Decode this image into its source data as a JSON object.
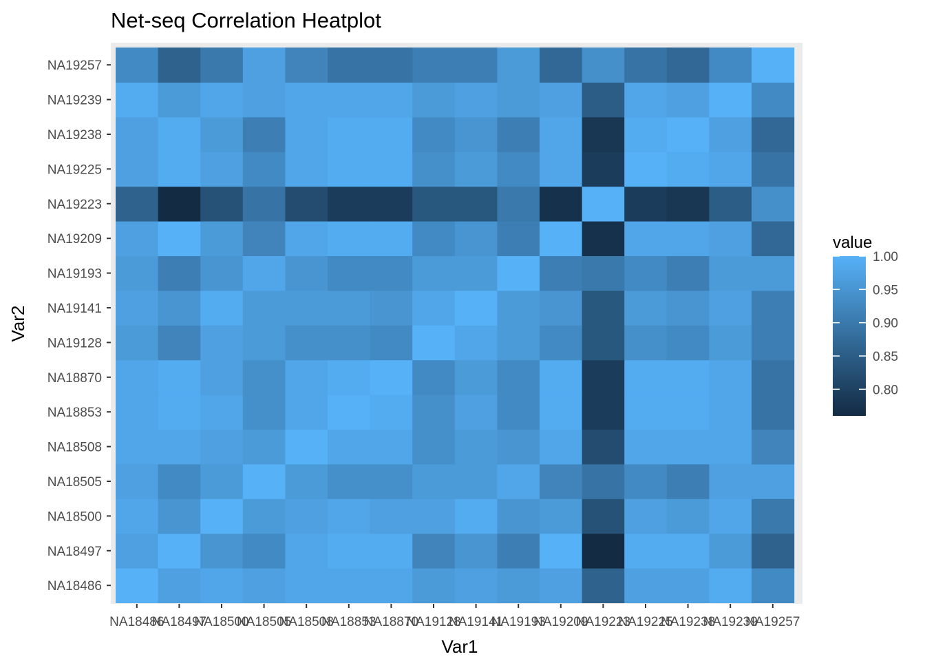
{
  "chart_data": {
    "type": "heatmap",
    "title": "Net-seq Correlation Heatplot",
    "xlabel": "Var1",
    "ylabel": "Var2",
    "x": [
      "NA18486",
      "NA18497",
      "NA18500",
      "NA18505",
      "NA18508",
      "NA18853",
      "NA18870",
      "NA19128",
      "NA19141",
      "NA19193",
      "NA19209",
      "NA19223",
      "NA19225",
      "NA19238",
      "NA19239",
      "NA19257"
    ],
    "y": [
      "NA18486",
      "NA18497",
      "NA18500",
      "NA18505",
      "NA18508",
      "NA18853",
      "NA18870",
      "NA19128",
      "NA19141",
      "NA19193",
      "NA19209",
      "NA19223",
      "NA19225",
      "NA19238",
      "NA19239",
      "NA19257"
    ],
    "values": [
      [
        1.0,
        0.97,
        0.98,
        0.97,
        0.98,
        0.98,
        0.98,
        0.96,
        0.97,
        0.96,
        0.97,
        0.86,
        0.97,
        0.97,
        0.99,
        0.93
      ],
      [
        0.97,
        1.0,
        0.95,
        0.93,
        0.98,
        0.99,
        0.99,
        0.92,
        0.95,
        0.91,
        1.0,
        0.76,
        0.99,
        0.99,
        0.96,
        0.86
      ],
      [
        0.98,
        0.95,
        1.0,
        0.96,
        0.97,
        0.98,
        0.97,
        0.97,
        0.99,
        0.95,
        0.96,
        0.83,
        0.97,
        0.96,
        0.98,
        0.9
      ],
      [
        0.97,
        0.93,
        0.96,
        1.0,
        0.96,
        0.94,
        0.94,
        0.96,
        0.96,
        0.98,
        0.92,
        0.89,
        0.93,
        0.91,
        0.97,
        0.97
      ],
      [
        0.98,
        0.98,
        0.97,
        0.96,
        1.0,
        0.98,
        0.98,
        0.94,
        0.96,
        0.95,
        0.98,
        0.82,
        0.98,
        0.98,
        0.98,
        0.92
      ],
      [
        0.98,
        0.99,
        0.98,
        0.94,
        0.98,
        1.0,
        0.99,
        0.94,
        0.97,
        0.93,
        0.99,
        0.79,
        0.99,
        0.99,
        0.98,
        0.89
      ],
      [
        0.98,
        0.99,
        0.97,
        0.94,
        0.98,
        0.99,
        1.0,
        0.93,
        0.96,
        0.93,
        0.99,
        0.79,
        0.99,
        0.99,
        0.98,
        0.89
      ],
      [
        0.96,
        0.92,
        0.97,
        0.96,
        0.94,
        0.94,
        0.93,
        1.0,
        0.98,
        0.96,
        0.93,
        0.84,
        0.94,
        0.93,
        0.96,
        0.91
      ],
      [
        0.97,
        0.95,
        0.99,
        0.96,
        0.96,
        0.96,
        0.95,
        0.98,
        1.0,
        0.96,
        0.95,
        0.84,
        0.96,
        0.95,
        0.97,
        0.91
      ],
      [
        0.96,
        0.91,
        0.95,
        0.98,
        0.95,
        0.93,
        0.93,
        0.96,
        0.96,
        1.0,
        0.91,
        0.9,
        0.93,
        0.91,
        0.96,
        0.96
      ],
      [
        0.97,
        1.0,
        0.96,
        0.92,
        0.98,
        0.99,
        0.99,
        0.93,
        0.95,
        0.91,
        1.0,
        0.77,
        0.98,
        0.98,
        0.97,
        0.87
      ],
      [
        0.86,
        0.76,
        0.83,
        0.89,
        0.82,
        0.79,
        0.79,
        0.84,
        0.84,
        0.9,
        0.77,
        1.0,
        0.79,
        0.78,
        0.85,
        0.94
      ],
      [
        0.97,
        0.99,
        0.97,
        0.93,
        0.98,
        0.99,
        0.99,
        0.94,
        0.96,
        0.93,
        0.98,
        0.79,
        1.0,
        0.99,
        0.98,
        0.89
      ],
      [
        0.97,
        0.99,
        0.96,
        0.91,
        0.98,
        0.99,
        0.99,
        0.93,
        0.95,
        0.91,
        0.98,
        0.78,
        0.99,
        1.0,
        0.97,
        0.87
      ],
      [
        0.99,
        0.96,
        0.98,
        0.97,
        0.98,
        0.98,
        0.98,
        0.96,
        0.97,
        0.96,
        0.97,
        0.85,
        0.98,
        0.97,
        1.0,
        0.93
      ],
      [
        0.93,
        0.86,
        0.9,
        0.97,
        0.92,
        0.89,
        0.89,
        0.91,
        0.91,
        0.96,
        0.87,
        0.94,
        0.89,
        0.87,
        0.93,
        1.0
      ]
    ],
    "colorbar": {
      "title": "value",
      "ticks": [
        0.8,
        0.85,
        0.9,
        0.95,
        1.0
      ],
      "tick_labels": [
        "0.80",
        "0.85",
        "0.90",
        "0.95",
        "1.00"
      ],
      "min": 0.76,
      "max": 1.0,
      "low_color": "#132B43",
      "high_color": "#56B1F7"
    },
    "panel_background": "#EBEBEB",
    "legend_position": "right"
  }
}
